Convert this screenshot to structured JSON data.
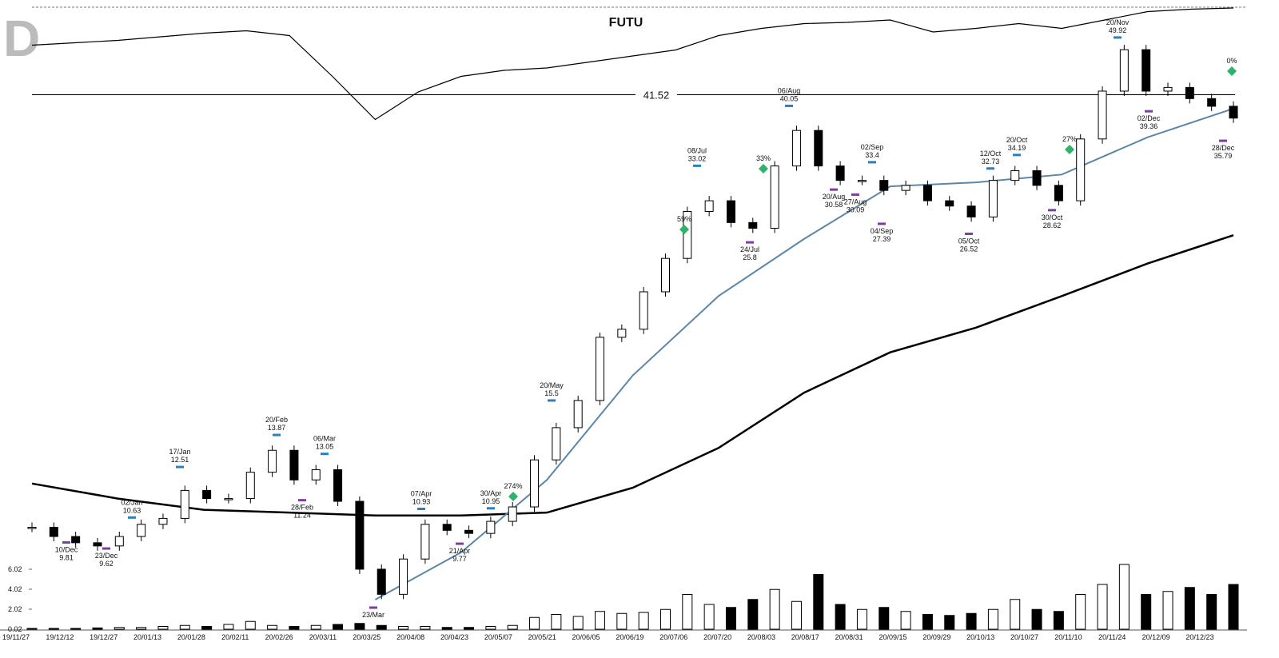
{
  "chart_data": [
    {
      "type": "candlestick",
      "title": "FUTU",
      "panel_label": "D",
      "log_scale": true,
      "ylim": [
        7.36,
        54.9
      ],
      "closes": [
        10.3,
        10.0,
        9.8,
        9.7,
        10.0,
        10.4,
        10.6,
        11.6,
        11.3,
        11.3,
        12.3,
        13.2,
        12.0,
        12.4,
        11.2,
        9.0,
        8.3,
        9.3,
        10.4,
        10.2,
        10.1,
        10.5,
        11.0,
        12.8,
        14.2,
        15.5,
        19.0,
        19.5,
        22.0,
        24.5,
        28.5,
        29.5,
        27.5,
        27.0,
        33.0,
        37.0,
        33.0,
        31.5,
        31.5,
        30.5,
        31.0,
        29.5,
        29.0,
        28.0,
        31.5,
        32.5,
        31.0,
        29.5,
        36.0,
        42.0,
        48.0,
        42.0,
        42.5,
        41.0,
        40.0,
        38.5
      ],
      "up_color": "#ffffff",
      "down_color": "#000000",
      "lines": [
        {
          "color": "#000000",
          "values": [
            11.86,
            11.3,
            10.9,
            10.8,
            10.7,
            10.7,
            10.8,
            11.7,
            13.3,
            15.9,
            18.1,
            19.6,
            21.7,
            24.1,
            26.4
          ]
        },
        {
          "color": "#5b86a8",
          "values": [
            null,
            null,
            null,
            null,
            8.16,
            9.5,
            12.0,
            16.8,
            21.7,
            26.1,
            30.9,
            31.3,
            32.1,
            36.2,
            39.7
          ]
        }
      ],
      "reference_line": 41.52,
      "annotations": [
        {
          "label": "02/Jan",
          "value": 10.63,
          "kind": "high"
        },
        {
          "label": "17/Jan",
          "value": 12.51,
          "kind": "high"
        },
        {
          "label": "20/Feb",
          "value": 13.87,
          "kind": "high"
        },
        {
          "label": "06/Mar",
          "value": 13.05,
          "kind": "high"
        },
        {
          "label": "07/Apr",
          "value": 10.93,
          "kind": "high"
        },
        {
          "label": "30/Apr",
          "value": 10.95,
          "kind": "high"
        },
        {
          "label": "20/May",
          "value": 15.5,
          "kind": "high"
        },
        {
          "label": "08/Jul",
          "value": 33.02,
          "kind": "high"
        },
        {
          "label": "06/Aug",
          "value": 40.05,
          "kind": "high"
        },
        {
          "label": "02/Sep",
          "value": 33.4,
          "kind": "high"
        },
        {
          "label": "12/Oct",
          "value": 32.73,
          "kind": "high"
        },
        {
          "label": "20/Oct",
          "value": 34.19,
          "kind": "high"
        },
        {
          "label": "20/Nov",
          "value": 49.92,
          "kind": "high"
        },
        {
          "label": "10/Dec",
          "value": 9.81,
          "kind": "low"
        },
        {
          "label": "23/Dec",
          "value": 9.62,
          "kind": "low"
        },
        {
          "label": "28/Feb",
          "value": 11.24,
          "kind": "low"
        },
        {
          "label": "23/Mar",
          "kind": "low"
        },
        {
          "label": "21/Apr",
          "value": 9.77,
          "kind": "low"
        },
        {
          "label": "24/Jul",
          "value": 25.8,
          "kind": "low"
        },
        {
          "label": "20/Aug",
          "value": 30.58,
          "kind": "low"
        },
        {
          "label": "27/Aug",
          "value": 30.09,
          "kind": "low"
        },
        {
          "label": "04/Sep",
          "value": 27.39,
          "kind": "low"
        },
        {
          "label": "05/Oct",
          "value": 26.52,
          "kind": "low"
        },
        {
          "label": "30/Oct",
          "value": 28.62,
          "kind": "low"
        },
        {
          "label": "02/Dec",
          "value": 39.36,
          "kind": "low"
        },
        {
          "label": "28/Dec",
          "value": 35.79,
          "kind": "low"
        }
      ],
      "signals": {
        "color": "#2db36a",
        "values": [
          274,
          59,
          33,
          27,
          0
        ],
        "value_labels": [
          "274%",
          "59%",
          "33%",
          "27%",
          "0%"
        ]
      }
    },
    {
      "type": "bar",
      "color": "#000000",
      "x_labels": [
        "19/11/27",
        "19/12/12",
        "19/12/27",
        "20/01/13",
        "20/01/28",
        "20/02/11",
        "20/02/26",
        "20/03/11",
        "20/03/25",
        "20/04/08",
        "20/04/23",
        "20/05/07",
        "20/05/21",
        "20/06/05",
        "20/06/19",
        "20/07/06",
        "20/07/20",
        "20/08/03",
        "20/08/17",
        "20/08/31",
        "20/09/15",
        "20/09/29",
        "20/10/13",
        "20/10/27",
        "20/11/10",
        "20/11/24",
        "20/12/09",
        "20/12/23"
      ],
      "values": [
        0.1,
        0.1,
        0.1,
        0.15,
        0.2,
        0.2,
        0.3,
        0.4,
        0.3,
        0.5,
        0.8,
        0.4,
        0.3,
        0.4,
        0.5,
        0.6,
        0.4,
        0.3,
        0.3,
        0.2,
        0.2,
        0.3,
        0.4,
        1.2,
        1.5,
        1.3,
        1.8,
        1.6,
        1.7,
        2.0,
        3.5,
        2.5,
        2.2,
        3.0,
        4.0,
        2.8,
        5.5,
        2.5,
        2.0,
        2.2,
        1.8,
        1.5,
        1.4,
        1.6,
        2.0,
        3.0,
        2.0,
        1.8,
        3.5,
        4.5,
        6.5,
        3.5,
        3.8,
        4.2,
        3.5,
        4.5
      ],
      "ylim": [
        0.02,
        7.62
      ],
      "yticks": [
        0.02,
        2.02,
        4.02,
        6.02
      ]
    },
    {
      "type": "line",
      "color": "#000000",
      "ylim": [
        0,
        100
      ],
      "values": [
        69,
        71,
        73,
        76,
        79,
        81,
        77,
        43,
        7,
        30,
        43,
        48,
        50,
        55,
        60,
        65,
        77,
        83,
        87,
        88,
        90,
        80,
        83,
        87,
        83,
        90,
        97,
        99,
        100
      ]
    }
  ]
}
